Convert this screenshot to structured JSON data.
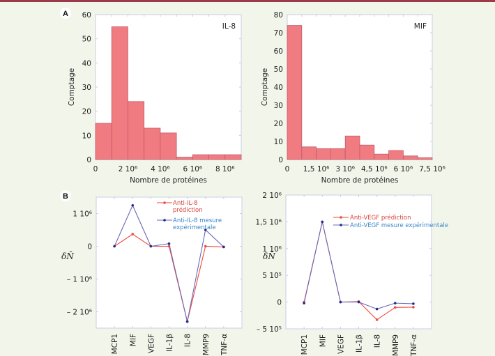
{
  "colors": {
    "bar_fill": "#f07b81",
    "bar_edge": "#c25a6a",
    "prediction": "#ef4a3f",
    "measured": "#1f2a8a",
    "measured_line": "#6a6ab8",
    "frame": "#c9cde6",
    "rule": "#9c3a4b"
  },
  "panels": {
    "A": {
      "tag": "A"
    },
    "B": {
      "tag": "B"
    }
  },
  "chart_data": [
    {
      "id": "A-left",
      "type": "bar",
      "panel": "A",
      "inset_label": "IL-8",
      "xlabel": "Nombre de protéines",
      "ylabel": "Comptage",
      "bin_start": 0,
      "bin_width": 1000000,
      "values": [
        15,
        55,
        24,
        13,
        11,
        1,
        2,
        2,
        2
      ],
      "xlim": [
        0,
        9000000
      ],
      "ylim": [
        0,
        60
      ],
      "xticks": [
        0,
        2000000,
        4000000,
        6000000,
        8000000
      ],
      "xtick_labels": [
        "0",
        "2 10⁶",
        "4 10⁶",
        "6 10⁶",
        "8 10⁶"
      ],
      "yticks": [
        0,
        10,
        20,
        30,
        40,
        50,
        60
      ],
      "ytick_labels": [
        "0",
        "10",
        "20",
        "30",
        "40",
        "50",
        "60"
      ],
      "grid": false
    },
    {
      "id": "A-right",
      "type": "bar",
      "panel": "A",
      "inset_label": "MIF",
      "xlabel": "Nombre de protéines",
      "ylabel": "Comptage",
      "bin_start": 0,
      "bin_width": 750000,
      "values": [
        74,
        7,
        6,
        6,
        13,
        8,
        3,
        5,
        2,
        1
      ],
      "xlim": [
        0,
        7500000
      ],
      "ylim": [
        0,
        80
      ],
      "xticks": [
        0,
        1500000,
        3000000,
        4500000,
        6000000,
        7500000
      ],
      "xtick_labels": [
        "0",
        "1,5 10⁶",
        "3 10⁶",
        "4,5 10⁶",
        "6 10⁶",
        "7,5 10⁶"
      ],
      "yticks": [
        0,
        10,
        20,
        30,
        40,
        50,
        60,
        70,
        80
      ],
      "ytick_labels": [
        "0",
        "10",
        "20",
        "30",
        "40",
        "50",
        "60",
        "70",
        "80"
      ],
      "grid": false
    },
    {
      "id": "B-left",
      "type": "line",
      "panel": "B",
      "ylabel": "δN̄",
      "categories": [
        "MCP1",
        "MIF",
        "VEGF",
        "IL-1β",
        "IL-8",
        "MMP9",
        "TNF-α"
      ],
      "series": [
        {
          "name": "Anti-IL-8 prédiction",
          "legend_lines": [
            "Anti-IL-8",
            "prédiction"
          ],
          "values": [
            0,
            370000,
            0,
            0,
            -2300000,
            0,
            -20000
          ]
        },
        {
          "name": "Anti-IL-8 mesure expérimentale",
          "legend_lines": [
            "Anti-IL-8 mesure",
            "expérimentale"
          ],
          "values": [
            0,
            1250000,
            0,
            80000,
            -2300000,
            500000,
            -20000
          ]
        }
      ],
      "ylim": [
        -2500000,
        1500000
      ],
      "yticks": [
        -2000000,
        -1000000,
        0,
        1000000
      ],
      "ytick_labels": [
        "– 2 10⁶",
        "– 1 10⁶",
        "0",
        "1 10⁶"
      ],
      "legend": "top-right",
      "grid": false
    },
    {
      "id": "B-right",
      "type": "line",
      "panel": "B",
      "ylabel": "δN̄",
      "categories": [
        "MCP1",
        "MIF",
        "VEGF",
        "IL-1β",
        "IL-8",
        "MMP9",
        "TNF-α"
      ],
      "series": [
        {
          "name": "Anti-VEGF prédiction",
          "legend_lines": [
            "Anti-VEGF prédiction"
          ],
          "values": [
            0,
            1500000,
            0,
            10000,
            -330000,
            -100000,
            -95000
          ]
        },
        {
          "name": "Anti-VEGF mesure expérimentale",
          "legend_lines": [
            "Anti-VEGF mesure expérimentale"
          ],
          "values": [
            -20000,
            1500000,
            0,
            0,
            -130000,
            -20000,
            -30000
          ]
        }
      ],
      "ylim": [
        -500000,
        2000000
      ],
      "yticks": [
        -500000,
        0,
        500000,
        1000000,
        1500000,
        2000000
      ],
      "ytick_labels": [
        "– 5 10⁵",
        "0",
        "5 10⁵",
        "1 10⁶",
        "1,5 10⁶",
        "2 10⁶"
      ],
      "legend": "top-right",
      "grid": false
    }
  ]
}
